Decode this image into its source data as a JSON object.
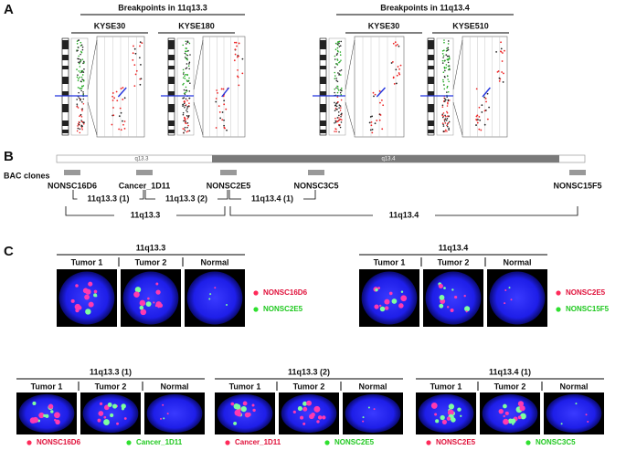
{
  "panel_a": {
    "label": "A",
    "groups": [
      {
        "title": "Breakpoints in 11q13.3",
        "samples": [
          "KYSE30",
          "KYSE180"
        ]
      },
      {
        "title": "Breakpoints in 11q13.4",
        "samples": [
          "KYSE30",
          "KYSE510"
        ]
      }
    ]
  },
  "panel_b": {
    "label": "B",
    "track_label": "BAC clones",
    "bands": [
      "q13.3",
      "q13.4"
    ],
    "clones": [
      "NONSC16D6",
      "Cancer_1D11",
      "NONSC2E5",
      "NONSC3C5",
      "NONSC15F5"
    ],
    "ranges": [
      "11q13.3 (1)",
      "11q13.3 (2)",
      "11q13.4 (1)",
      "11q13.3",
      "11q13.4"
    ]
  },
  "panel_c": {
    "label": "C",
    "sets": [
      {
        "title": "11q13.3",
        "columns": [
          "Tumor 1",
          "Tumor 2",
          "Normal"
        ],
        "probes": [
          "NONSC16D6",
          "NONSC2E5"
        ]
      },
      {
        "title": "11q13.4",
        "columns": [
          "Tumor 1",
          "Tumor 2",
          "Normal"
        ],
        "probes": [
          "NONSC2E5",
          "NONSC15F5"
        ]
      },
      {
        "title": "11q13.3 (1)",
        "columns": [
          "Tumor 1",
          "Tumor 2",
          "Normal"
        ],
        "probes": [
          "NONSC16D6",
          "Cancer_1D11"
        ]
      },
      {
        "title": "11q13.3 (2)",
        "columns": [
          "Tumor 1",
          "Tumor 2",
          "Normal"
        ],
        "probes": [
          "Cancer_1D11",
          "NONSC2E5"
        ]
      },
      {
        "title": "11q13.4 (1)",
        "columns": [
          "Tumor 1",
          "Tumor 2",
          "Normal"
        ],
        "probes": [
          "NONSC2E5",
          "NONSC3C5"
        ]
      }
    ]
  }
}
